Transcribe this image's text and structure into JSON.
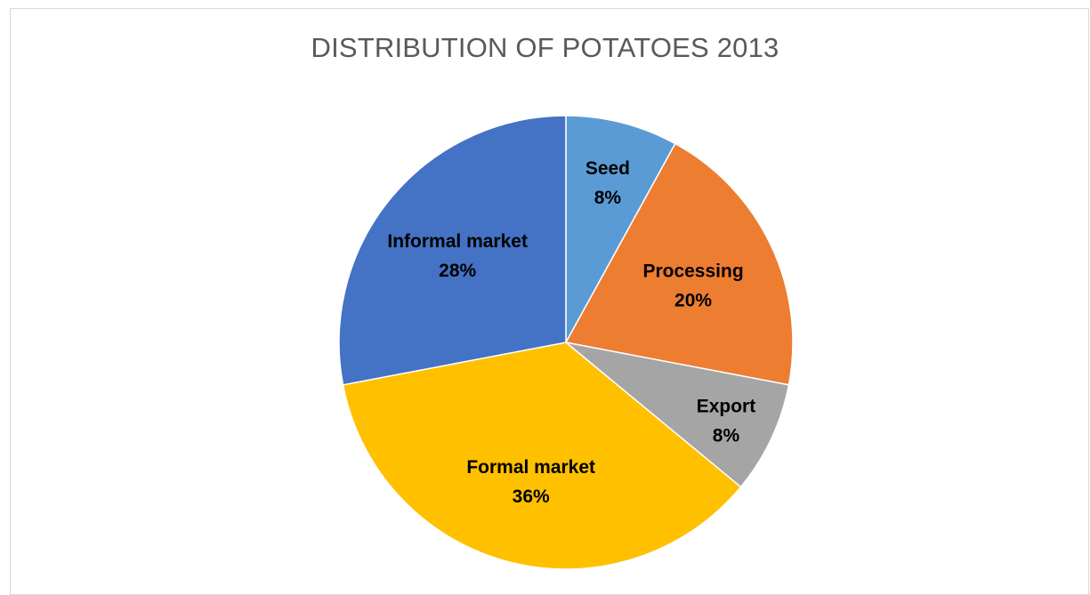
{
  "chart_data": {
    "type": "pie",
    "title": "DISTRIBUTION OF POTATOES 2013",
    "start_angle_deg": 0,
    "direction": "clockwise",
    "slices": [
      {
        "label": "Seed",
        "value": 8,
        "display": "8%",
        "color": "#5B9BD5"
      },
      {
        "label": "Processing",
        "value": 20,
        "display": "20%",
        "color": "#ED7D31"
      },
      {
        "label": "Export",
        "value": 8,
        "display": "8%",
        "color": "#A5A5A5"
      },
      {
        "label": "Formal market",
        "value": 36,
        "display": "36%",
        "color": "#FFC000"
      },
      {
        "label": "Informal market",
        "value": 28,
        "display": "28%",
        "color": "#4472C4"
      }
    ],
    "data_labels": "inside",
    "legend": "none"
  }
}
